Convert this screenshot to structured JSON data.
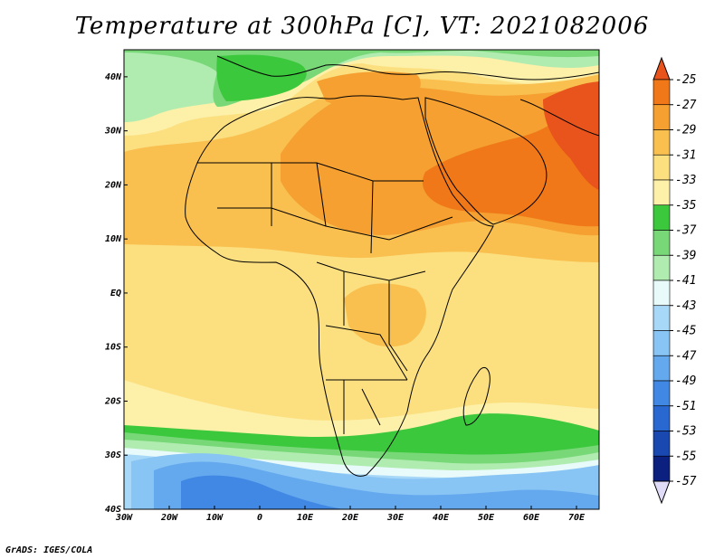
{
  "title": "Temperature at 300hPa [C], VT: 2021082006",
  "footer": "GrADS: IGES/COLA",
  "map": {
    "lon_range": [
      -30,
      75
    ],
    "lat_range": [
      -40,
      45
    ],
    "x_ticks": [
      {
        "lon": -30,
        "label": "30W"
      },
      {
        "lon": -20,
        "label": "20W"
      },
      {
        "lon": -10,
        "label": "10W"
      },
      {
        "lon": 0,
        "label": "0"
      },
      {
        "lon": 10,
        "label": "10E"
      },
      {
        "lon": 20,
        "label": "20E"
      },
      {
        "lon": 30,
        "label": "30E"
      },
      {
        "lon": 40,
        "label": "40E"
      },
      {
        "lon": 50,
        "label": "50E"
      },
      {
        "lon": 60,
        "label": "60E"
      },
      {
        "lon": 70,
        "label": "70E"
      }
    ],
    "y_ticks": [
      {
        "lat": 40,
        "label": "40N"
      },
      {
        "lat": 30,
        "label": "30N"
      },
      {
        "lat": 20,
        "label": "20N"
      },
      {
        "lat": 10,
        "label": "10N"
      },
      {
        "lat": 0,
        "label": "EQ"
      },
      {
        "lat": -10,
        "label": "10S"
      },
      {
        "lat": -20,
        "label": "20S"
      },
      {
        "lat": -30,
        "label": "30S"
      },
      {
        "lat": -40,
        "label": "40S"
      }
    ]
  },
  "colorbar": {
    "levels": [
      "-25",
      "-27",
      "-29",
      "-31",
      "-33",
      "-35",
      "-37",
      "-39",
      "-41",
      "-43",
      "-45",
      "-47",
      "-49",
      "-51",
      "-53",
      "-55",
      "-57"
    ],
    "colors": [
      "#e8541c",
      "#f07818",
      "#f5a030",
      "#f9c050",
      "#fce080",
      "#fdf0a8",
      "#3cc83c",
      "#78d878",
      "#b0ecb0",
      "#e8fafa",
      "#a8d8f8",
      "#88c4f4",
      "#64a8ee",
      "#4088e4",
      "#2868d0",
      "#1848b0",
      "#0c2080",
      "#e0dcf8"
    ]
  },
  "palette": {
    "t25": "#e8541c",
    "t27": "#f07818",
    "t29": "#f5a030",
    "t31": "#f9c050",
    "t33": "#fce080",
    "t35": "#fdf0a8",
    "t37": "#3cc83c",
    "t39": "#78d878",
    "t41": "#b0ecb0",
    "t43": "#e8fafa",
    "t45": "#a8d8f8",
    "t47": "#88c4f4",
    "t49": "#64a8ee",
    "t51": "#4088e4",
    "t53": "#2868d0"
  }
}
